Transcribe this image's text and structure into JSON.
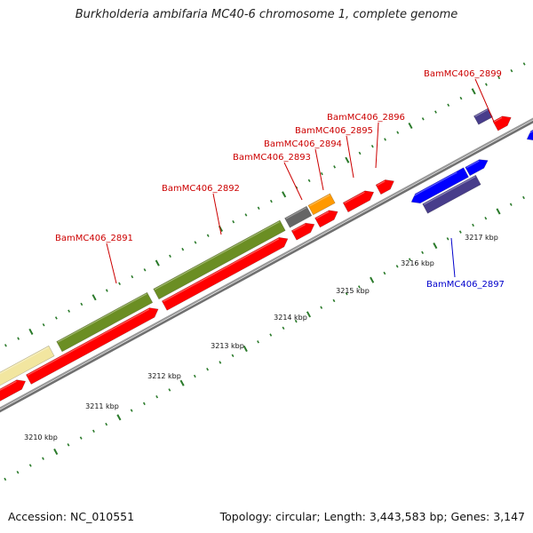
{
  "title": "Burkholderia ambifaria MC40-6 chromosome 1, complete genome",
  "footer": {
    "accession": "Accession: NC_010551",
    "summary": "Topology: circular; Length: 3,443,583 bp; Genes: 3,147"
  },
  "colors": {
    "background": "#ffffff",
    "axis": "#888888",
    "tick": "#2a7a2a",
    "label_forward": "#cc0000",
    "label_reverse": "#0000cc",
    "cds": "#ff0000",
    "gene_green": "#6b8e23",
    "gene_yellow": "#f2e6a0",
    "gene_gray": "#666666",
    "gene_orange": "#ff9900",
    "gene_blue": "#0000ff",
    "gene_slate": "#483d8b"
  },
  "scale": {
    "unit": "kbp",
    "tick_labels": [
      "3210 kbp",
      "3211 kbp",
      "3212 kbp",
      "3213 kbp",
      "3214 kbp",
      "3215 kbp",
      "3216 kbp",
      "3217 kbp"
    ]
  },
  "gene_labels": [
    {
      "name": "BamMC406_2891",
      "strand": "forward"
    },
    {
      "name": "BamMC406_2892",
      "strand": "forward"
    },
    {
      "name": "BamMC406_2893",
      "strand": "forward"
    },
    {
      "name": "BamMC406_2894",
      "strand": "forward"
    },
    {
      "name": "BamMC406_2895",
      "strand": "forward"
    },
    {
      "name": "BamMC406_2896",
      "strand": "forward"
    },
    {
      "name": "BamMC406_2899",
      "strand": "forward"
    },
    {
      "name": "BamMC406_2897",
      "strand": "reverse"
    }
  ]
}
